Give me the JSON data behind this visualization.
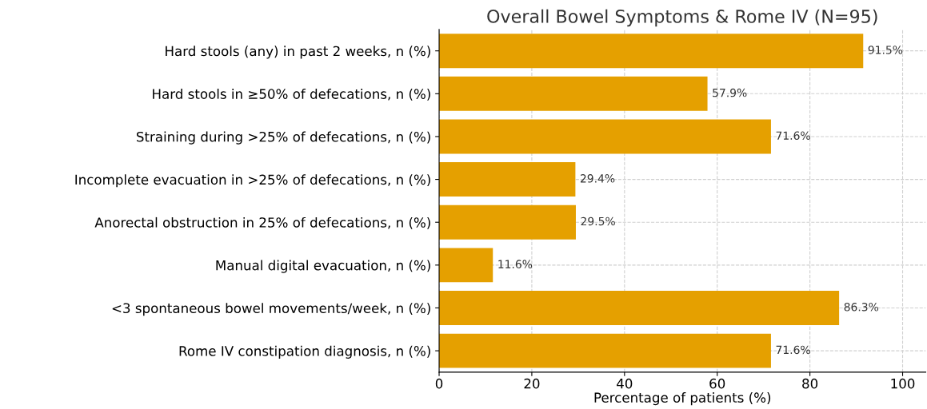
{
  "chart_data": {
    "type": "bar",
    "orientation": "horizontal",
    "title": "Overall Bowel Symptoms & Rome IV (N=95)",
    "xlabel": "Percentage of patients (%)",
    "categories": [
      "Hard stools (any) in past 2 weeks, n (%)",
      "Hard stools in ≥50% of defecations, n (%)",
      "Straining during >25% of defecations, n (%)",
      "Incomplete evacuation in >25% of defecations, n (%)",
      "Anorectal obstruction in 25% of defecations, n (%)",
      "Manual digital evacuation, n (%)",
      "<3 spontaneous bowel movements/week, n (%)",
      "Rome IV constipation diagnosis, n (%)"
    ],
    "values": [
      91.5,
      57.9,
      71.6,
      29.4,
      29.5,
      11.6,
      86.3,
      71.6
    ],
    "value_labels": [
      "91.5%",
      "57.9%",
      "71.6%",
      "29.4%",
      "29.5%",
      "11.6%",
      "86.3%",
      "71.6%"
    ],
    "color": "#e5a000",
    "xlim": [
      0,
      105
    ],
    "xticks": [
      0,
      20,
      40,
      60,
      80,
      100
    ],
    "grid": true
  }
}
